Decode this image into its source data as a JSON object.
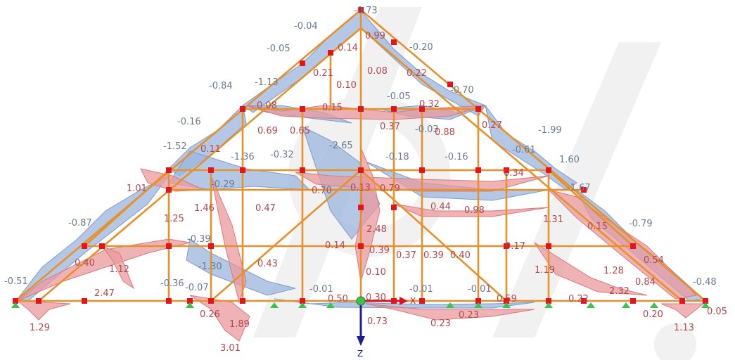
{
  "colors": {
    "member": "#e8902a",
    "negative_fill": "#9bb6dc",
    "positive_fill": "#e99a9c",
    "node": "#e3141e",
    "support": "#3dc24e",
    "neg_label": "#6b7a8f",
    "pos_label": "#b5484d",
    "x_axis": "#d9141e",
    "z_axis": "#1d1d9a"
  },
  "axes": {
    "x_label": "X",
    "z_label": "Z"
  },
  "labels_negative": [
    "-0.73",
    "-0.04",
    "-0.05",
    "-0.20",
    "-0.84",
    "-1.13",
    "-0.70",
    "-0.16",
    "-2.65",
    "-0.05",
    "-0.03",
    "-1.99",
    "-1.52",
    "-1.36",
    "-0.32",
    "-0.18",
    "-0.16",
    "-0.61",
    "1.60",
    "-1.67",
    "-0.29",
    "-0.87",
    "-0.79",
    "-1.30",
    "-0.36",
    "-0.07",
    "-0.01",
    "-0.01",
    "-0.01",
    "-0.51",
    "-0.48",
    "-0.39"
  ],
  "labels_positive": [
    "0.99",
    "0.14",
    "0.21",
    "0.08",
    "0.22",
    "0.10",
    "0.08",
    "0.15",
    "0.32",
    "0.69",
    "0.65",
    "0.37",
    "0.88",
    "0.27",
    "0.11",
    "0.34",
    "1.01",
    "0.70",
    "0.13",
    "0.79",
    "0.44",
    "0.98",
    "1.46",
    "0.47",
    "1.25",
    "1.31",
    "0.15",
    "2.48",
    "0.14",
    "0.39",
    "0.37",
    "0.39",
    "0.40",
    "0.17",
    "0.40",
    "1.12",
    "0.43",
    "0.10",
    "1.19",
    "1.28",
    "0.84",
    "2.47",
    "2.32",
    "0.50",
    "0.30",
    "0.59",
    "0.22",
    "1.29",
    "0.26",
    "1.89",
    "3.01",
    "0.73",
    "0.23",
    "0.23",
    "0.20",
    "1.13",
    "0.05",
    "0.54"
  ]
}
